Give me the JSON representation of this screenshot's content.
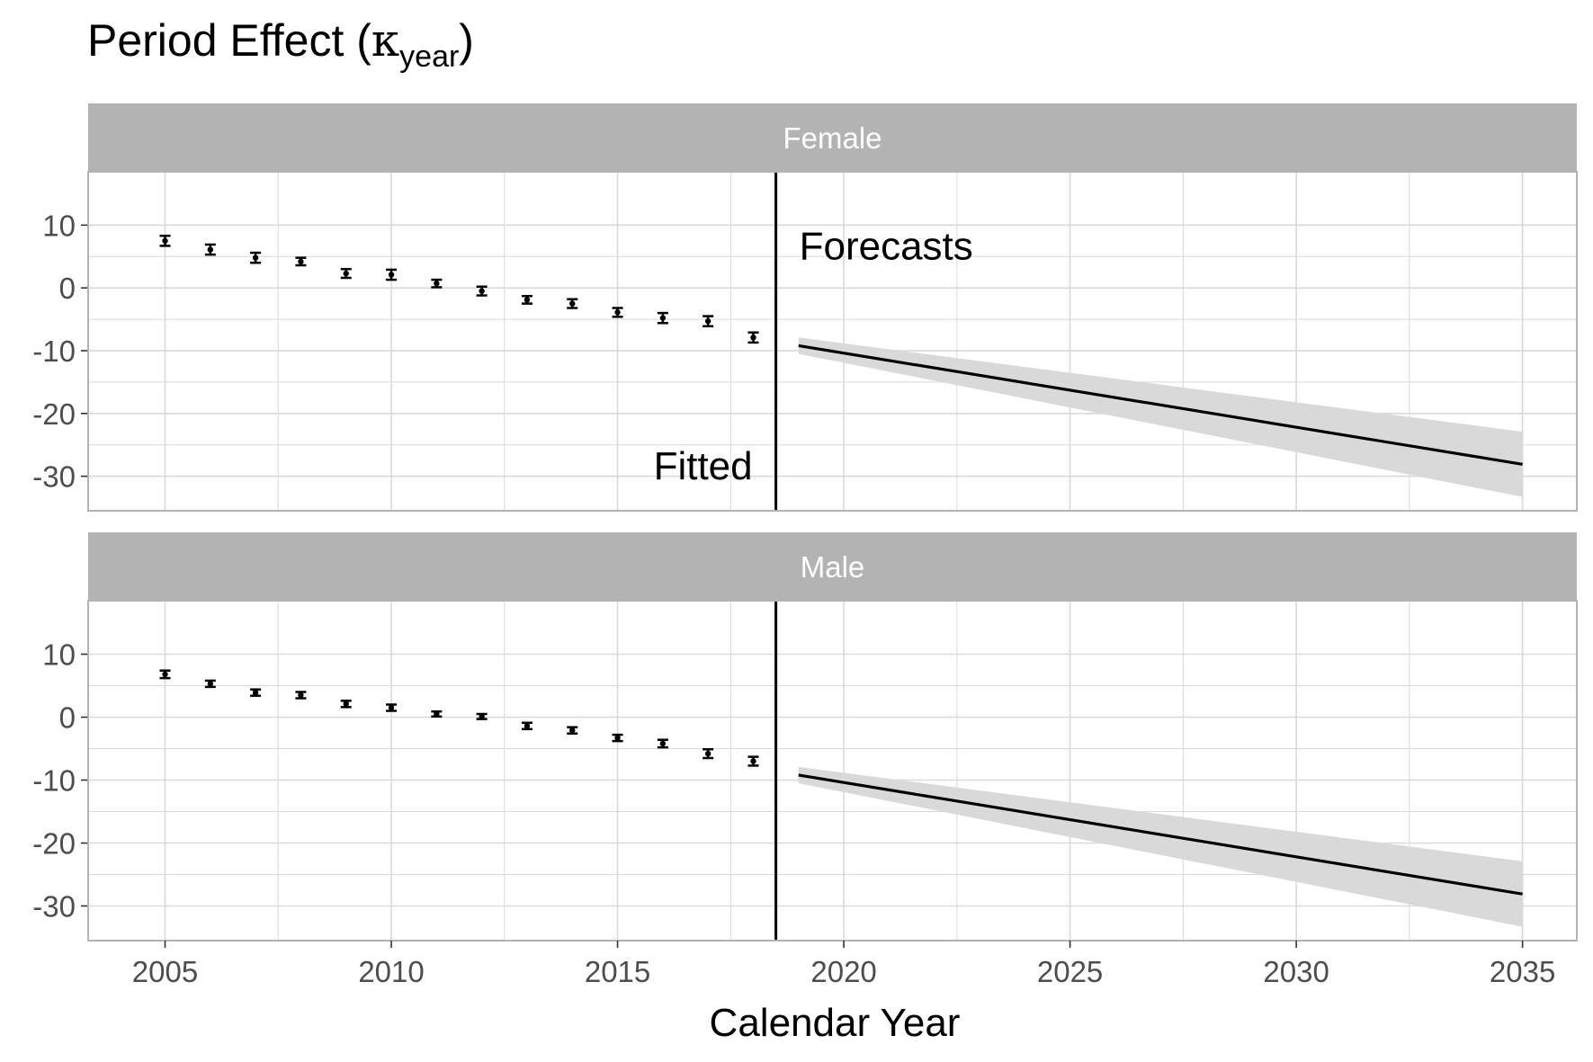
{
  "chart_data": {
    "type": "line",
    "title": {
      "main": "Period Effect (",
      "symbol": "κ",
      "subscript": "year",
      "close": ")"
    },
    "xlabel": "Calendar Year",
    "ylabel": "",
    "xlim": [
      2003.3,
      2036.2
    ],
    "ylim": [
      -35.5,
      18.5
    ],
    "x_ticks": [
      2005,
      2010,
      2015,
      2020,
      2025,
      2030,
      2035
    ],
    "x_tick_labels": [
      "2005",
      "2010",
      "2015",
      "2020",
      "2025",
      "2030",
      "2035"
    ],
    "y_ticks": [
      10,
      0,
      -10,
      -20,
      -30
    ],
    "y_tick_labels": [
      "10",
      "0",
      "-10",
      "-20",
      "-30"
    ],
    "grid": true,
    "divider_x": 2018.5,
    "annotations": {
      "fitted": "Fitted",
      "forecasts": "Forecasts"
    },
    "colors": {
      "strip": "#b3b3b3",
      "ribbon": "#d9d9d9",
      "line": "#000000",
      "grid": "#d9d9d9",
      "border": "#b3b3b3"
    },
    "panels": [
      {
        "label": "Female",
        "fitted": {
          "x": [
            2005,
            2006,
            2007,
            2008,
            2009,
            2010,
            2011,
            2012,
            2013,
            2014,
            2015,
            2016,
            2017,
            2018
          ],
          "y": [
            7.5,
            6.1,
            4.8,
            4.2,
            2.3,
            2.1,
            0.7,
            -0.5,
            -1.9,
            -2.5,
            -3.9,
            -4.8,
            -5.3,
            -7.9
          ],
          "lower": [
            6.7,
            5.3,
            4.0,
            3.6,
            1.6,
            1.3,
            0.1,
            -1.2,
            -2.5,
            -3.2,
            -4.6,
            -5.6,
            -6.1,
            -8.7
          ],
          "upper": [
            8.3,
            6.9,
            5.6,
            4.8,
            3.0,
            2.9,
            1.3,
            0.2,
            -1.3,
            -1.8,
            -3.2,
            -4.0,
            -4.5,
            -7.1
          ]
        },
        "forecast": {
          "x": [
            2019,
            2035
          ],
          "y": [
            -9.2,
            -28.1
          ],
          "lower": [
            -10.5,
            -33.3
          ],
          "upper": [
            -7.9,
            -22.9
          ]
        }
      },
      {
        "label": "Male",
        "fitted": {
          "x": [
            2005,
            2006,
            2007,
            2008,
            2009,
            2010,
            2011,
            2012,
            2013,
            2014,
            2015,
            2016,
            2017,
            2018
          ],
          "y": [
            6.8,
            5.3,
            3.9,
            3.5,
            2.1,
            1.5,
            0.5,
            0.1,
            -1.4,
            -2.1,
            -3.3,
            -4.2,
            -5.8,
            -7.0
          ],
          "lower": [
            6.2,
            4.8,
            3.4,
            3.0,
            1.6,
            1.0,
            0.1,
            -0.3,
            -1.9,
            -2.6,
            -3.8,
            -4.8,
            -6.5,
            -7.7
          ],
          "upper": [
            7.4,
            5.8,
            4.4,
            4.0,
            2.6,
            2.0,
            0.9,
            0.5,
            -0.9,
            -1.6,
            -2.8,
            -3.6,
            -5.1,
            -6.3
          ]
        },
        "forecast": {
          "x": [
            2019,
            2035
          ],
          "y": [
            -9.2,
            -28.1
          ],
          "lower": [
            -10.5,
            -33.3
          ],
          "upper": [
            -7.9,
            -22.9
          ]
        }
      }
    ]
  }
}
